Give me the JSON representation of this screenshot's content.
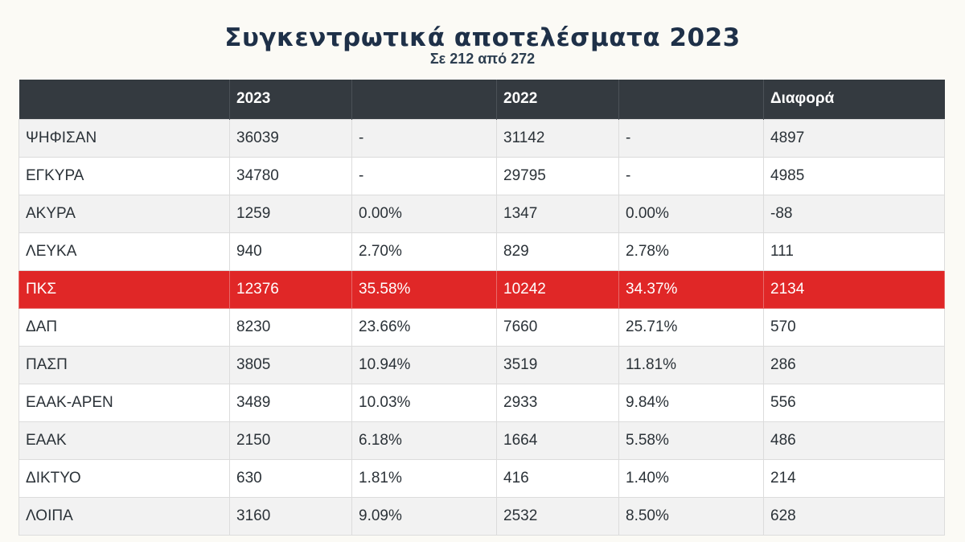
{
  "title": "Συγκεντρωτικά αποτελέσματα 2023",
  "subtitle": "Σε 212 από 272",
  "table": {
    "headers": [
      "",
      "2023",
      "",
      "2022",
      "",
      "Διαφορά"
    ],
    "rows": [
      {
        "label": "ΨΗΦΙΣΑΝ",
        "v2023": "36039",
        "p2023": "-",
        "v2022": "31142",
        "p2022": "-",
        "diff": "4897"
      },
      {
        "label": "ΕΓΚΥΡΑ",
        "v2023": "34780",
        "p2023": "-",
        "v2022": "29795",
        "p2022": "-",
        "diff": "4985"
      },
      {
        "label": "ΑΚΥΡΑ",
        "v2023": "1259",
        "p2023": "0.00%",
        "v2022": "1347",
        "p2022": "0.00%",
        "diff": "-88"
      },
      {
        "label": "ΛΕΥΚΑ",
        "v2023": "940",
        "p2023": "2.70%",
        "v2022": "829",
        "p2022": "2.78%",
        "diff": "111"
      },
      {
        "label": "ΠΚΣ",
        "v2023": "12376",
        "p2023": "35.58%",
        "v2022": "10242",
        "p2022": "34.37%",
        "diff": "2134",
        "highlight": true
      },
      {
        "label": "ΔΑΠ",
        "v2023": "8230",
        "p2023": "23.66%",
        "v2022": "7660",
        "p2022": "25.71%",
        "diff": "570"
      },
      {
        "label": "ΠΑΣΠ",
        "v2023": "3805",
        "p2023": "10.94%",
        "v2022": "3519",
        "p2022": "11.81%",
        "diff": "286"
      },
      {
        "label": "ΕΑΑΚ-ΑΡΕΝ",
        "v2023": "3489",
        "p2023": "10.03%",
        "v2022": "2933",
        "p2022": "9.84%",
        "diff": "556"
      },
      {
        "label": "ΕΑΑΚ",
        "v2023": "2150",
        "p2023": "6.18%",
        "v2022": "1664",
        "p2022": "5.58%",
        "diff": "486"
      },
      {
        "label": "ΔΙΚΤΥΟ",
        "v2023": "630",
        "p2023": "1.81%",
        "v2022": "416",
        "p2022": "1.40%",
        "diff": "214"
      },
      {
        "label": "ΛΟΙΠΑ",
        "v2023": "3160",
        "p2023": "9.09%",
        "v2022": "2532",
        "p2022": "8.50%",
        "diff": "628"
      }
    ]
  },
  "colors": {
    "header_background": "#343a40",
    "highlight_row": "#e02727",
    "title_color": "#1e3048"
  }
}
